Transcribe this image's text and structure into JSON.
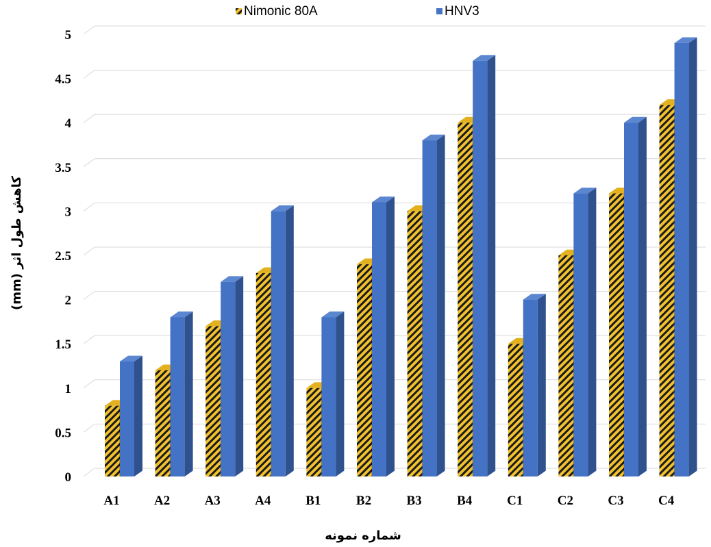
{
  "chart_data": {
    "type": "bar",
    "title": "",
    "xlabel": "شماره نمونه",
    "ylabel": "کاهش طول اثر (mm)",
    "ylim": [
      0,
      5
    ],
    "yticks": [
      "0",
      "0.5",
      "1",
      "1.5",
      "2",
      "2.5",
      "3",
      "3.5",
      "4",
      "4.5",
      "5"
    ],
    "grid": true,
    "legend_position": "top",
    "categories": [
      "A1",
      "A2",
      "A3",
      "A4",
      "B1",
      "B2",
      "B3",
      "B4",
      "C1",
      "C2",
      "C3",
      "C4"
    ],
    "series": [
      {
        "name": "Nimonic 80A",
        "color": "#F2C12E",
        "pattern": "black-diagonal-hatch",
        "values": [
          0.8,
          1.2,
          1.7,
          2.3,
          1.0,
          2.4,
          3.0,
          4.0,
          1.5,
          2.5,
          3.2,
          4.2
        ]
      },
      {
        "name": "HNV3",
        "color": "#4472C4",
        "values": [
          1.3,
          1.8,
          2.2,
          3.0,
          1.8,
          3.1,
          3.8,
          4.7,
          2.0,
          3.2,
          4.0,
          4.9
        ]
      }
    ]
  }
}
